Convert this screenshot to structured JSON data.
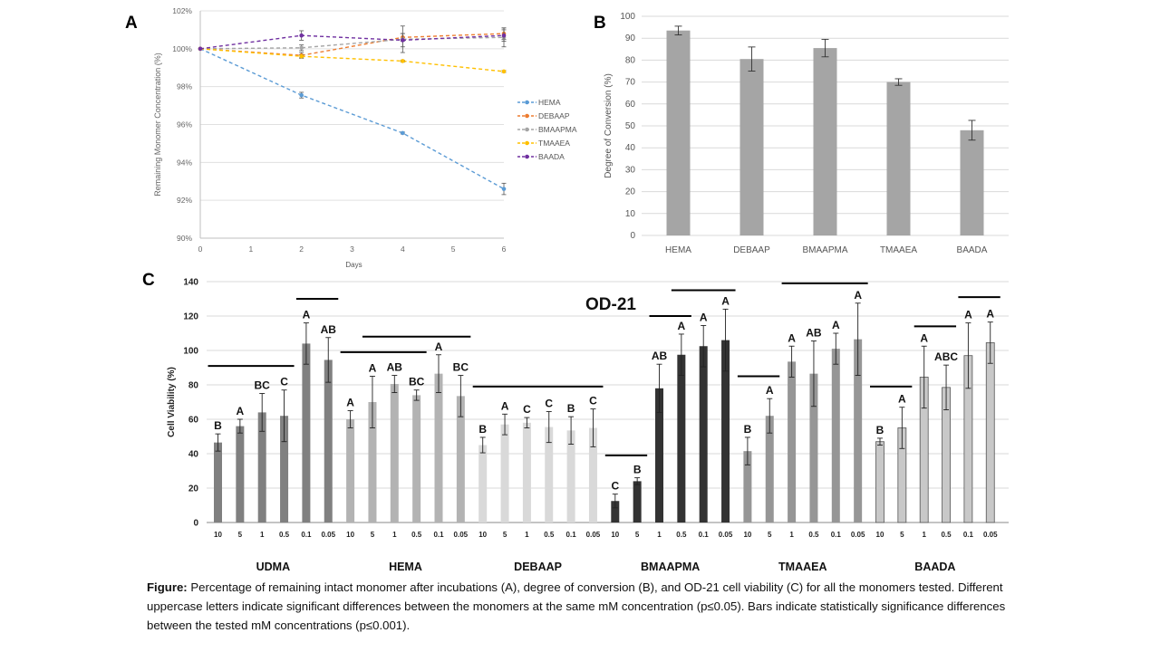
{
  "panel_labels": {
    "a": "A",
    "b": "B",
    "c": "C"
  },
  "chart_data": [
    {
      "id": "A",
      "type": "line",
      "title": "",
      "xlabel": "Days",
      "ylabel": "Remaining Monomer Concentration (%)",
      "x": [
        0,
        2,
        4,
        6
      ],
      "xticks": [
        "0",
        "1",
        "2",
        "3",
        "4",
        "5",
        "6"
      ],
      "ylim": [
        90,
        102
      ],
      "yticks": [
        "90%",
        "92%",
        "94%",
        "96%",
        "98%",
        "100%",
        "102%"
      ],
      "series": [
        {
          "name": "HEMA",
          "color": "#5b9bd5",
          "values": [
            100,
            97.55,
            95.55,
            92.6
          ],
          "errors": [
            0,
            0.15,
            0.05,
            0.3
          ]
        },
        {
          "name": "DEBAAP",
          "color": "#ed7d31",
          "values": [
            100,
            99.65,
            100.6,
            100.8
          ],
          "errors": [
            0,
            0.15,
            0.2,
            0.3
          ]
        },
        {
          "name": "BMAAPMA",
          "color": "#a5a5a5",
          "values": [
            100,
            100.05,
            100.5,
            100.6
          ],
          "errors": [
            0,
            0.15,
            0.7,
            0.5
          ]
        },
        {
          "name": "TMAAEA",
          "color": "#ffc000",
          "values": [
            100,
            99.6,
            99.35,
            98.8
          ],
          "errors": [
            0,
            0.08,
            0.05,
            0.05
          ]
        },
        {
          "name": "BAADA",
          "color": "#7030a0",
          "values": [
            100,
            100.7,
            100.45,
            100.7
          ],
          "errors": [
            0,
            0.25,
            0.35,
            0.3
          ]
        }
      ]
    },
    {
      "id": "B",
      "type": "bar",
      "title": "",
      "xlabel": "",
      "ylabel": "Degree of Conversion (%)",
      "categories": [
        "HEMA",
        "DEBAAP",
        "BMAAPMA",
        "TMAAEA",
        "BAADA"
      ],
      "values": [
        93.5,
        80.5,
        85.5,
        70,
        48
      ],
      "errors": [
        2,
        5.5,
        4,
        1.5,
        4.5
      ],
      "ylim": [
        0,
        100
      ],
      "yticks": [
        "0",
        "10",
        "20",
        "30",
        "40",
        "50",
        "60",
        "70",
        "80",
        "90",
        "100"
      ]
    },
    {
      "id": "C",
      "type": "bar",
      "title": "OD-21",
      "xlabel": "",
      "ylabel": "Cell Viability (%)",
      "ylim": [
        0,
        140
      ],
      "yticks": [
        "0",
        "20",
        "40",
        "60",
        "80",
        "100",
        "120",
        "140"
      ],
      "groups": [
        {
          "name": "UDMA",
          "color": "#808080",
          "bar_count": 6,
          "concentrations": [
            "10",
            "5",
            "1",
            "0.5",
            "0.1",
            "0.05"
          ],
          "values": [
            46.5,
            56,
            64,
            62,
            104,
            94.5
          ],
          "errors": [
            5,
            4,
            11,
            15,
            12,
            13
          ],
          "letters": [
            "B",
            "A",
            "BC",
            "C",
            "A",
            "AB"
          ]
        },
        {
          "name": "HEMA",
          "color": "#b3b3b3",
          "bar_count": 6,
          "concentrations": [
            "10",
            "5",
            "1",
            "0.5",
            "0.1",
            "0.05"
          ],
          "values": [
            60,
            70,
            80.5,
            74,
            86.5,
            73.5
          ],
          "errors": [
            5,
            15,
            5,
            3,
            11,
            12
          ],
          "letters": [
            "A",
            "A",
            "AB",
            "BC",
            "A",
            "BC"
          ]
        },
        {
          "name": "DEBAAP",
          "color": "#d9d9d9",
          "bar_count": 6,
          "concentrations": [
            "10",
            "5",
            "1",
            "0.5",
            "0.1",
            "0.05"
          ],
          "values": [
            45,
            57,
            58,
            55.5,
            53.5,
            55
          ],
          "errors": [
            4.5,
            6,
            3,
            9,
            8,
            11
          ],
          "letters": [
            "B",
            "A",
            "C",
            "C",
            "B",
            "C"
          ]
        },
        {
          "name": "BMAAPMA",
          "color": "#333333",
          "bar_count": 6,
          "concentrations": [
            "10",
            "5",
            "1",
            "0.5",
            "0.1",
            "0.05"
          ],
          "values": [
            12.5,
            24,
            78,
            97.5,
            102.5,
            106
          ],
          "errors": [
            4,
            2,
            14,
            12,
            12,
            18
          ],
          "letters": [
            "C",
            "B",
            "AB",
            "A",
            "A",
            "A"
          ]
        },
        {
          "name": "TMAAEA",
          "color": "#969696",
          "bar_count": 6,
          "concentrations": [
            "10",
            "5",
            "1",
            "0.5",
            "0.1",
            "0.05"
          ],
          "values": [
            41.5,
            62,
            93.5,
            86.5,
            101,
            106.5
          ],
          "errors": [
            8,
            10,
            9,
            19,
            9,
            21
          ],
          "letters": [
            "B",
            "A",
            "A",
            "AB",
            "A",
            "A"
          ]
        },
        {
          "name": "BAADA",
          "color": "#c8c8c8",
          "bar_count": 6,
          "concentrations": [
            "10",
            "5",
            "1",
            "0.5",
            "0.1",
            "0.05"
          ],
          "values": [
            47,
            55,
            84.5,
            78.5,
            97,
            104.5
          ],
          "errors": [
            2,
            12,
            18,
            13,
            19,
            12
          ],
          "letters": [
            "B",
            "A",
            "A",
            "ABC",
            "A",
            "A"
          ]
        }
      ],
      "significance_bars": [
        {
          "group": "UDMA",
          "from_bar": 0,
          "to_bar": 3,
          "value": 91
        },
        {
          "group": "UDMA",
          "from_bar": 4,
          "to_bar": 5,
          "value": 130
        },
        {
          "group": "HEMA",
          "from_bar": 0,
          "to_bar": 3,
          "value": 99
        },
        {
          "group": "HEMA",
          "from_bar": 1,
          "to_bar": 5,
          "value": 108
        },
        {
          "group": "DEBAAP",
          "from_bar": 0,
          "to_bar": 5,
          "value": 79
        },
        {
          "group": "BMAAPMA",
          "from_bar": 0,
          "to_bar": 1,
          "value": 39
        },
        {
          "group": "BMAAPMA",
          "from_bar": 2,
          "to_bar": 3,
          "value": 120
        },
        {
          "group": "BMAAPMA",
          "from_bar": 3,
          "to_bar": 5,
          "value": 135
        },
        {
          "group": "TMAAEA",
          "from_bar": 0,
          "to_bar": 1,
          "value": 85
        },
        {
          "group": "TMAAEA",
          "from_bar": 2,
          "to_bar": 5,
          "value": 139
        },
        {
          "group": "BAADA",
          "from_bar": 0,
          "to_bar": 1,
          "value": 79
        },
        {
          "group": "BAADA",
          "from_bar": 2,
          "to_bar": 3,
          "value": 114
        },
        {
          "group": "BAADA",
          "from_bar": 4,
          "to_bar": 5,
          "value": 131
        }
      ]
    }
  ],
  "caption": {
    "label": "Figure:",
    "text": " Percentage of remaining intact monomer  after incubations (A), degree of conversion (B), and OD-21 cell viability (C) for all the monomers tested. Different uppercase letters indicate significant differences between the monomers  at the same mM concentration  (p≤0.05). Bars indicate statistically significance differences between the tested mM concentrations  (p≤0.001)."
  }
}
